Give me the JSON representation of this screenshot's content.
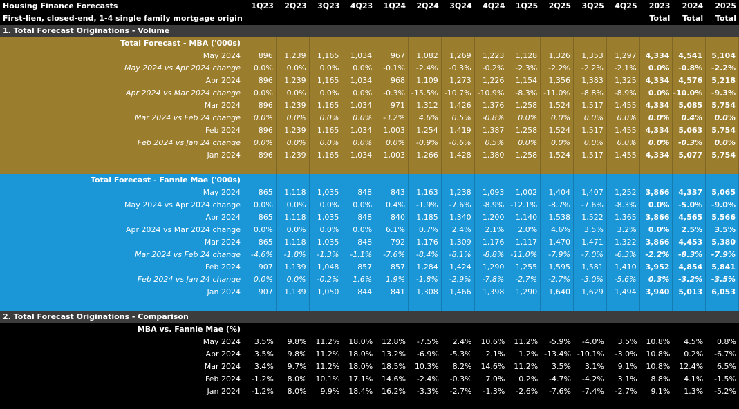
{
  "header": {
    "title": "Housing Finance Forecasts",
    "subtitle": "First-lien, closed-end, 1-4 single family mortgage originations",
    "columns": [
      "1Q23",
      "2Q23",
      "3Q23",
      "4Q23",
      "1Q24",
      "2Q24",
      "3Q24",
      "4Q24",
      "1Q25",
      "2Q25",
      "3Q25",
      "4Q25",
      "2023",
      "2024",
      "2025"
    ],
    "column_subheads": [
      "Total",
      "Total",
      "Total"
    ]
  },
  "sections": [
    {
      "title": "1. Total Forecast Originations - Volume",
      "blocks": [
        {
          "title": "Total Forecast - MBA ('000s)",
          "rows": [
            {
              "label": "May 2024",
              "cells": [
                "896",
                "1,239",
                "1,165",
                "1,034",
                "967",
                "1,082",
                "1,269",
                "1,223",
                "1,128",
                "1,326",
                "1,353",
                "1,297",
                "4,334",
                "4,541",
                "5,104"
              ]
            },
            {
              "label": "May 2024 vs Apr 2024 change",
              "cells": [
                "0.0%",
                "0.0%",
                "0.0%",
                "0.0%",
                "-0.1%",
                "-2.4%",
                "-0.3%",
                "-0.2%",
                "-2.3%",
                "-2.2%",
                "-2.2%",
                "-2.1%",
                "0.0%",
                "-0.8%",
                "-2.2%"
              ]
            },
            {
              "label": "Apr 2024",
              "cells": [
                "896",
                "1,239",
                "1,165",
                "1,034",
                "968",
                "1,109",
                "1,273",
                "1,226",
                "1,154",
                "1,356",
                "1,383",
                "1,325",
                "4,334",
                "4,576",
                "5,218"
              ]
            },
            {
              "label": "Apr 2024 vs Mar 2024 change",
              "cells": [
                "0.0%",
                "0.0%",
                "0.0%",
                "0.0%",
                "-0.3%",
                "-15.5%",
                "-10.7%",
                "-10.9%",
                "-8.3%",
                "-11.0%",
                "-8.8%",
                "-8.9%",
                "0.0%",
                "-10.0%",
                "-9.3%"
              ]
            },
            {
              "label": "Mar 2024",
              "cells": [
                "896",
                "1,239",
                "1,165",
                "1,034",
                "971",
                "1,312",
                "1,426",
                "1,376",
                "1,258",
                "1,524",
                "1,517",
                "1,455",
                "4,334",
                "5,085",
                "5,754"
              ]
            },
            {
              "label": "Mar 2024 vs Feb 24 change",
              "cells": [
                "0.0%",
                "0.0%",
                "0.0%",
                "0.0%",
                "-3.2%",
                "4.6%",
                "0.5%",
                "-0.8%",
                "0.0%",
                "0.0%",
                "0.0%",
                "0.0%",
                "0.0%",
                "0.4%",
                "0.0%"
              ]
            },
            {
              "label": "Feb 2024",
              "cells": [
                "896",
                "1,239",
                "1,165",
                "1,034",
                "1,003",
                "1,254",
                "1,419",
                "1,387",
                "1,258",
                "1,524",
                "1,517",
                "1,455",
                "4,334",
                "5,063",
                "5,754"
              ]
            },
            {
              "label": "Feb 2024 vs Jan 24 change",
              "cells": [
                "0.0%",
                "0.0%",
                "0.0%",
                "0.0%",
                "0.0%",
                "-0.9%",
                "-0.6%",
                "0.5%",
                "0.0%",
                "0.0%",
                "0.0%",
                "0.0%",
                "0.0%",
                "-0.3%",
                "0.0%"
              ]
            },
            {
              "label": "Jan 2024",
              "cells": [
                "896",
                "1,239",
                "1,165",
                "1,034",
                "1,003",
                "1,266",
                "1,428",
                "1,380",
                "1,258",
                "1,524",
                "1,517",
                "1,455",
                "4,334",
                "5,077",
                "5,754"
              ]
            }
          ]
        },
        {
          "title": "Total Forecast - Fannie Mae ('000s)",
          "rows": [
            {
              "label": "May 2024",
              "cells": [
                "865",
                "1,118",
                "1,035",
                "848",
                "843",
                "1,163",
                "1,238",
                "1,093",
                "1,002",
                "1,404",
                "1,407",
                "1,252",
                "3,866",
                "4,337",
                "5,065"
              ]
            },
            {
              "label": "May 2024 vs Apr 2024 change",
              "cells": [
                "0.0%",
                "0.0%",
                "0.0%",
                "0.0%",
                "0.4%",
                "-1.9%",
                "-7.6%",
                "-8.9%",
                "-12.1%",
                "-8.7%",
                "-7.6%",
                "-8.3%",
                "0.0%",
                "-5.0%",
                "-9.0%"
              ]
            },
            {
              "label": "Apr 2024",
              "cells": [
                "865",
                "1,118",
                "1,035",
                "848",
                "840",
                "1,185",
                "1,340",
                "1,200",
                "1,140",
                "1,538",
                "1,522",
                "1,365",
                "3,866",
                "4,565",
                "5,566"
              ]
            },
            {
              "label": "Apr 2024 vs Mar 2024 change",
              "cells": [
                "0.0%",
                "0.0%",
                "0.0%",
                "0.0%",
                "6.1%",
                "0.7%",
                "2.4%",
                "2.1%",
                "2.0%",
                "4.6%",
                "3.5%",
                "3.2%",
                "0.0%",
                "2.5%",
                "3.5%"
              ]
            },
            {
              "label": "Mar 2024",
              "cells": [
                "865",
                "1,118",
                "1,035",
                "848",
                "792",
                "1,176",
                "1,309",
                "1,176",
                "1,117",
                "1,470",
                "1,471",
                "1,322",
                "3,866",
                "4,453",
                "5,380"
              ]
            },
            {
              "label": "Mar 2024 vs Feb 24 change",
              "cells": [
                "-4.6%",
                "-1.8%",
                "-1.3%",
                "-1.1%",
                "-7.6%",
                "-8.4%",
                "-8.1%",
                "-8.8%",
                "-11.0%",
                "-7.9%",
                "-7.0%",
                "-6.3%",
                "-2.2%",
                "-8.3%",
                "-7.9%"
              ]
            },
            {
              "label": "Feb 2024",
              "cells": [
                "907",
                "1,139",
                "1,048",
                "857",
                "857",
                "1,284",
                "1,424",
                "1,290",
                "1,255",
                "1,595",
                "1,581",
                "1,410",
                "3,952",
                "4,854",
                "5,841"
              ]
            },
            {
              "label": "Feb 2024 vs Jan 24 change",
              "cells": [
                "0.0%",
                "0.0%",
                "-0.2%",
                "1.6%",
                "1.9%",
                "-1.8%",
                "-2.9%",
                "-7.8%",
                "-2.7%",
                "-2.7%",
                "-3.0%",
                "-5.6%",
                "0.3%",
                "-3.2%",
                "-3.5%"
              ]
            },
            {
              "label": "Jan 2024",
              "cells": [
                "907",
                "1,139",
                "1,050",
                "844",
                "841",
                "1,308",
                "1,466",
                "1,398",
                "1,290",
                "1,640",
                "1,629",
                "1,494",
                "3,940",
                "5,013",
                "6,053"
              ]
            }
          ]
        }
      ]
    },
    {
      "title": "2. Total Forecast Originations - Comparison",
      "blocks": [
        {
          "title": "MBA vs. Fannie Mae (%)",
          "rows": [
            {
              "label": "May 2024",
              "cells": [
                "3.5%",
                "9.8%",
                "11.2%",
                "18.0%",
                "12.8%",
                "-7.5%",
                "2.4%",
                "10.6%",
                "11.2%",
                "-5.9%",
                "-4.0%",
                "3.5%",
                "10.8%",
                "4.5%",
                "0.8%"
              ]
            },
            {
              "label": "Apr 2024",
              "cells": [
                "3.5%",
                "9.8%",
                "11.2%",
                "18.0%",
                "13.2%",
                "-6.9%",
                "-5.3%",
                "2.1%",
                "1.2%",
                "-13.4%",
                "-10.1%",
                "-3.0%",
                "10.8%",
                "0.2%",
                "-6.7%"
              ]
            },
            {
              "label": "Mar 2024",
              "cells": [
                "3.4%",
                "9.7%",
                "11.2%",
                "18.0%",
                "18.5%",
                "10.3%",
                "8.2%",
                "14.6%",
                "11.2%",
                "3.5%",
                "3.1%",
                "9.1%",
                "10.8%",
                "12.4%",
                "6.5%"
              ]
            },
            {
              "label": "Feb 2024",
              "cells": [
                "-1.2%",
                "8.0%",
                "10.1%",
                "17.1%",
                "14.6%",
                "-2.4%",
                "-0.3%",
                "7.0%",
                "0.2%",
                "-4.7%",
                "-4.2%",
                "3.1%",
                "8.8%",
                "4.1%",
                "-1.5%"
              ]
            },
            {
              "label": "Jan 2024",
              "cells": [
                "-1.2%",
                "8.0%",
                "9.9%",
                "18.4%",
                "16.2%",
                "-3.3%",
                "-2.7%",
                "-1.3%",
                "-2.6%",
                "-7.6%",
                "-7.4%",
                "-2.7%",
                "9.1%",
                "1.3%",
                "-5.2%"
              ]
            }
          ]
        }
      ]
    }
  ]
}
